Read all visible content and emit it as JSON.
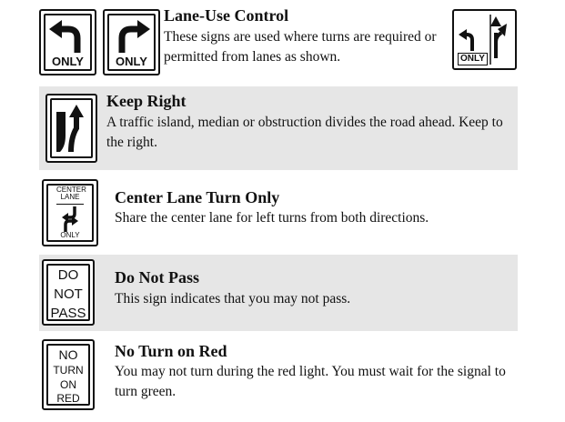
{
  "sections": [
    {
      "title": "Lane-Use Control",
      "description": "These signs are used where turns are required or permitted from lanes as shown.",
      "signs": [
        {
          "icon": "left-turn-arrow-icon",
          "text": "ONLY"
        },
        {
          "icon": "right-turn-arrow-icon",
          "text": "ONLY"
        },
        {
          "icon": "left-turn-and-through-arrows-icon",
          "text": "ONLY"
        }
      ]
    },
    {
      "title": "Keep Right",
      "description": "A traffic island, median or obstruction divides the road ahead. Keep to the right.",
      "signs": [
        {
          "icon": "keep-right-arrow-icon"
        }
      ]
    },
    {
      "title": "Center Lane Turn Only",
      "description": "Share the center lane for left turns from both directions.",
      "signs": [
        {
          "top_text": "CENTER LANE",
          "icon": "two-way-left-turn-arrows-icon",
          "text": "ONLY"
        }
      ]
    },
    {
      "title": "Do Not Pass",
      "description": "This sign indicates that you may not pass.",
      "signs": [
        {
          "lines": [
            "DO",
            "NOT",
            "PASS"
          ]
        }
      ]
    },
    {
      "title": "No Turn on Red",
      "description": "You may not turn during the red light. You must wait for the signal to turn green.",
      "signs": [
        {
          "lines": [
            "NO",
            "TURN",
            "ON",
            "RED"
          ]
        }
      ]
    }
  ]
}
